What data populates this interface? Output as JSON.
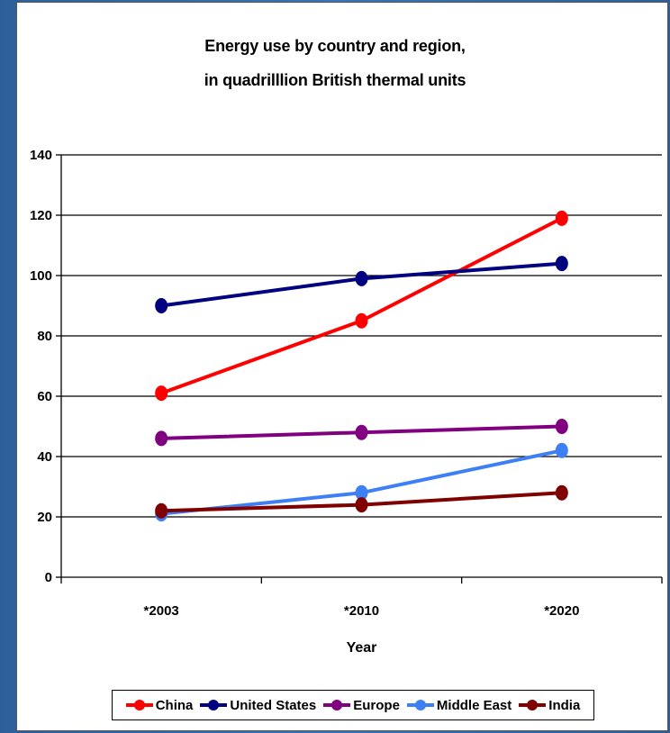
{
  "chart_data": {
    "type": "line",
    "title": [
      "Energy use by country and region,",
      "in quadrilllion British thermal units"
    ],
    "xlabel": "Year",
    "ylabel": "",
    "categories": [
      "*2003",
      "*2010",
      "*2020"
    ],
    "ylim": [
      0,
      140
    ],
    "yticks": [
      0,
      20,
      40,
      60,
      80,
      100,
      120,
      140
    ],
    "grid": true,
    "legend_position": "bottom",
    "series": [
      {
        "name": "China",
        "color": "#ff0000",
        "values": [
          61,
          85,
          119
        ]
      },
      {
        "name": "United States",
        "color": "#000080",
        "values": [
          90,
          99,
          104
        ]
      },
      {
        "name": "Europe",
        "color": "#800080",
        "values": [
          46,
          48,
          50
        ]
      },
      {
        "name": "Middle East",
        "color": "#3f7ff5",
        "values": [
          21,
          28,
          42
        ]
      },
      {
        "name": "India",
        "color": "#800000",
        "values": [
          22,
          24,
          28
        ]
      }
    ]
  }
}
